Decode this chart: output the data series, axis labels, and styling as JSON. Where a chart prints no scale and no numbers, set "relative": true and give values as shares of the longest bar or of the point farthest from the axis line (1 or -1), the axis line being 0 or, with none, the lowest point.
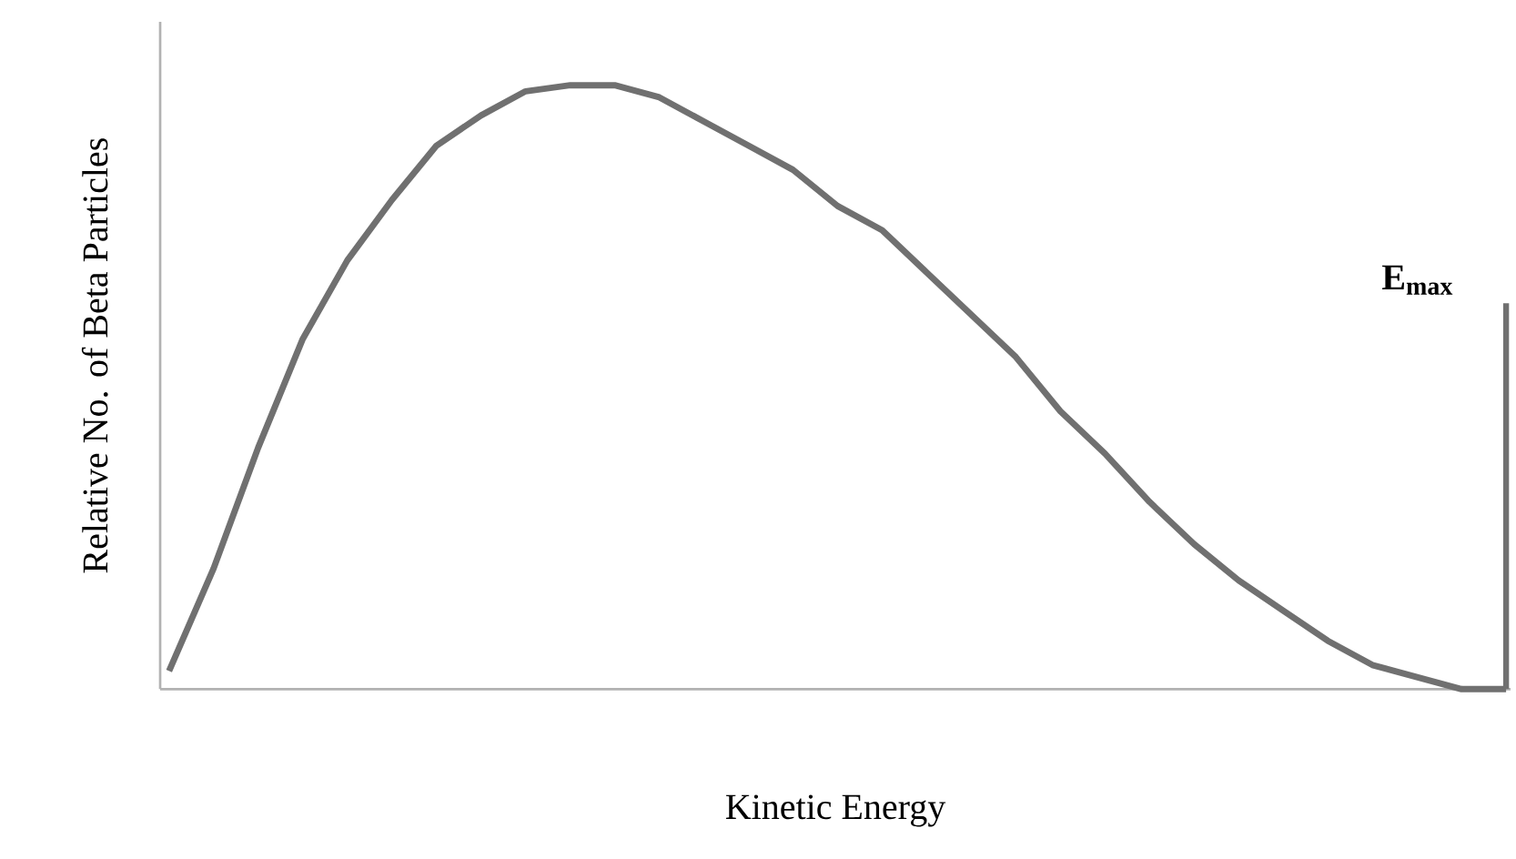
{
  "chart_data": {
    "type": "line",
    "relative": true,
    "xlabel": "Kinetic Energy",
    "ylabel": "Relative No. of Beta Particles",
    "categories": [
      null,
      null,
      null,
      null,
      null,
      null,
      null,
      null,
      null,
      null,
      null,
      null,
      null,
      null,
      null,
      null,
      null,
      null,
      null,
      null,
      null,
      null,
      null,
      null,
      null,
      null,
      null,
      null,
      null,
      null,
      null
    ],
    "series": [
      {
        "color": "#707070",
        "values": [
          0.03,
          0.2,
          0.4,
          0.58,
          0.71,
          0.81,
          0.9,
          0.95,
          0.99,
          1,
          1,
          0.98,
          0.94,
          0.9,
          0.86,
          0.8,
          0.76,
          0.69,
          0.62,
          0.55,
          0.46,
          0.39,
          0.31,
          0.24,
          0.18,
          0.13,
          0.08,
          0.04,
          0.02,
          0,
          0
        ]
      }
    ],
    "annotations": [
      "E$_{max}$"
    ],
    "marker": "none",
    "line_style": "solid"
  }
}
